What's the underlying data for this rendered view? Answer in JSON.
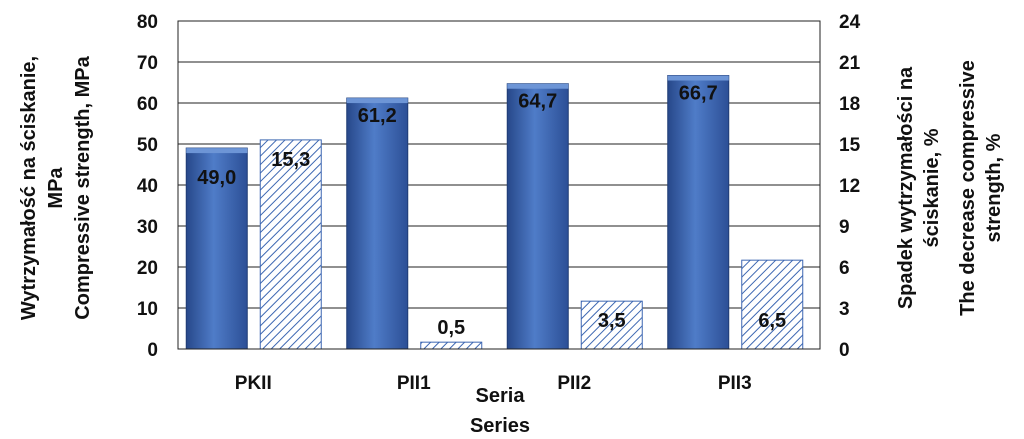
{
  "chart_data": {
    "type": "bar",
    "categories": [
      "PKII",
      "PII1",
      "PII2",
      "PII3"
    ],
    "series": [
      {
        "axis": "left",
        "values": [
          49.0,
          61.2,
          64.7,
          66.7
        ],
        "labels": [
          "49,0",
          "61,2",
          "64,7",
          "66,7"
        ],
        "color": "#3d67b2",
        "fill": "solid"
      },
      {
        "axis": "right",
        "values": [
          15.3,
          0.5,
          3.5,
          6.5
        ],
        "labels": [
          "15,3",
          "0,5",
          "3,5",
          "6,5"
        ],
        "color": "#3d67b2",
        "fill": "hatched"
      }
    ],
    "xlabel": [
      "Seria",
      "Series"
    ],
    "ylabel": [
      "Wytrzymałość na ściskanie,",
      "MPa",
      "Compressive strength, MPa"
    ],
    "y2label": [
      "Spadek wytrzymałości na",
      "ściskanie, %",
      "The decrease compressive",
      "strength, %"
    ],
    "ylim": [
      0,
      80
    ],
    "y2lim": [
      0,
      24
    ],
    "yticks": [
      "0",
      "10",
      "20",
      "30",
      "40",
      "50",
      "60",
      "70",
      "80"
    ],
    "y2ticks": [
      "0",
      "3",
      "6",
      "9",
      "12",
      "15",
      "18",
      "21",
      "24"
    ],
    "grid": true,
    "legend": "none"
  }
}
